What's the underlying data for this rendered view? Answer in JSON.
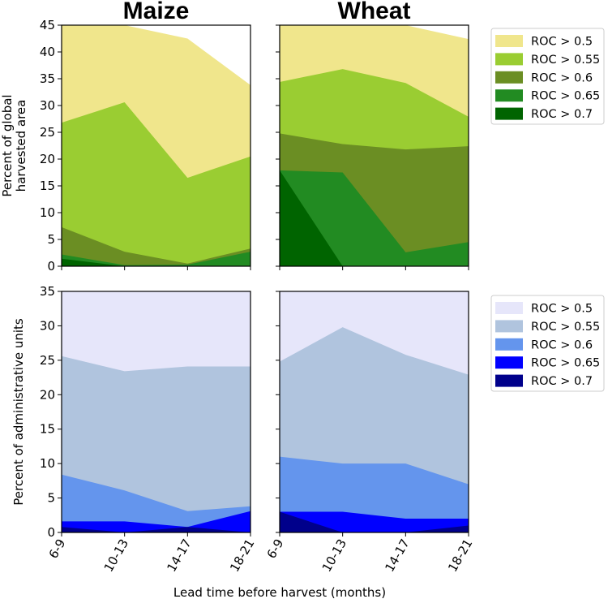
{
  "chart_data": {
    "type": "area",
    "xlabel": "Lead time before harvest (months)",
    "categories": [
      "6-9",
      "10-13",
      "14-17",
      "18-21"
    ],
    "rows": [
      {
        "ylabel": [
          "Percent of global",
          "harvested area"
        ],
        "ylim": [
          0,
          45
        ],
        "yticks": [
          0,
          5,
          10,
          15,
          20,
          25,
          30,
          35,
          40,
          45
        ],
        "legend": {
          "position": "right",
          "entries": [
            "ROC > 0.5",
            "ROC > 0.55",
            "ROC > 0.6",
            "ROC > 0.65",
            "ROC > 0.7"
          ],
          "colors": [
            "#f0e68c",
            "#9acd32",
            "#6b8e23",
            "#228b22",
            "#006400"
          ]
        },
        "panels": [
          {
            "title": "Maize",
            "series": [
              {
                "name": "ROC > 0.5",
                "values": [
                  45.5,
                  45.5,
                  42.5,
                  33.8
                ]
              },
              {
                "name": "ROC > 0.55",
                "values": [
                  26.8,
                  30.6,
                  16.5,
                  20.5
                ]
              },
              {
                "name": "ROC > 0.6",
                "values": [
                  7.3,
                  2.7,
                  0.5,
                  3.3
                ]
              },
              {
                "name": "ROC > 0.65",
                "values": [
                  2.2,
                  0.2,
                  0.3,
                  2.7
                ]
              },
              {
                "name": "ROC > 0.7",
                "values": [
                  1.4,
                  0.0,
                  0.0,
                  0.0
                ]
              }
            ]
          },
          {
            "title": "Wheat",
            "series": [
              {
                "name": "ROC > 0.5",
                "values": [
                  46,
                  46,
                  46,
                  42.4
                ]
              },
              {
                "name": "ROC > 0.55",
                "values": [
                  34.4,
                  36.8,
                  34.2,
                  27.9
                ]
              },
              {
                "name": "ROC > 0.6",
                "values": [
                  24.8,
                  22.8,
                  21.8,
                  22.4
                ]
              },
              {
                "name": "ROC > 0.65",
                "values": [
                  17.9,
                  17.5,
                  2.6,
                  4.5
                ]
              },
              {
                "name": "ROC > 0.7",
                "values": [
                  17.9,
                  0.0,
                  0.0,
                  0.0
                ]
              }
            ]
          }
        ]
      },
      {
        "ylabel": [
          "Percent of administrative units"
        ],
        "ylim": [
          0,
          35
        ],
        "yticks": [
          0,
          5,
          10,
          15,
          20,
          25,
          30,
          35
        ],
        "legend": {
          "position": "right",
          "entries": [
            "ROC > 0.5",
            "ROC > 0.55",
            "ROC > 0.6",
            "ROC > 0.65",
            "ROC > 0.7"
          ],
          "colors": [
            "#e6e6fa",
            "#b0c4de",
            "#6495ed",
            "#0000ff",
            "#00008b"
          ]
        },
        "panels": [
          {
            "title": "",
            "series": [
              {
                "name": "ROC > 0.5",
                "values": [
                  36,
                  36,
                  36,
                  36
                ]
              },
              {
                "name": "ROC > 0.55",
                "values": [
                  25.6,
                  23.4,
                  24.1,
                  24.1
                ]
              },
              {
                "name": "ROC > 0.6",
                "values": [
                  8.4,
                  6.1,
                  3.1,
                  3.8
                ]
              },
              {
                "name": "ROC > 0.65",
                "values": [
                  1.6,
                  1.6,
                  0.8,
                  3.1
                ]
              },
              {
                "name": "ROC > 0.7",
                "values": [
                  0.8,
                  0.0,
                  0.8,
                  0.0
                ]
              }
            ]
          },
          {
            "title": "",
            "series": [
              {
                "name": "ROC > 0.5",
                "values": [
                  36,
                  36,
                  36,
                  36
                ]
              },
              {
                "name": "ROC > 0.55",
                "values": [
                  24.8,
                  29.8,
                  25.8,
                  22.9
                ]
              },
              {
                "name": "ROC > 0.6",
                "values": [
                  11.0,
                  10.0,
                  10.0,
                  7.0
                ]
              },
              {
                "name": "ROC > 0.65",
                "values": [
                  3.0,
                  3.0,
                  2.0,
                  2.0
                ]
              },
              {
                "name": "ROC > 0.7",
                "values": [
                  3.0,
                  0.0,
                  0.0,
                  1.0
                ]
              }
            ]
          }
        ]
      }
    ]
  }
}
